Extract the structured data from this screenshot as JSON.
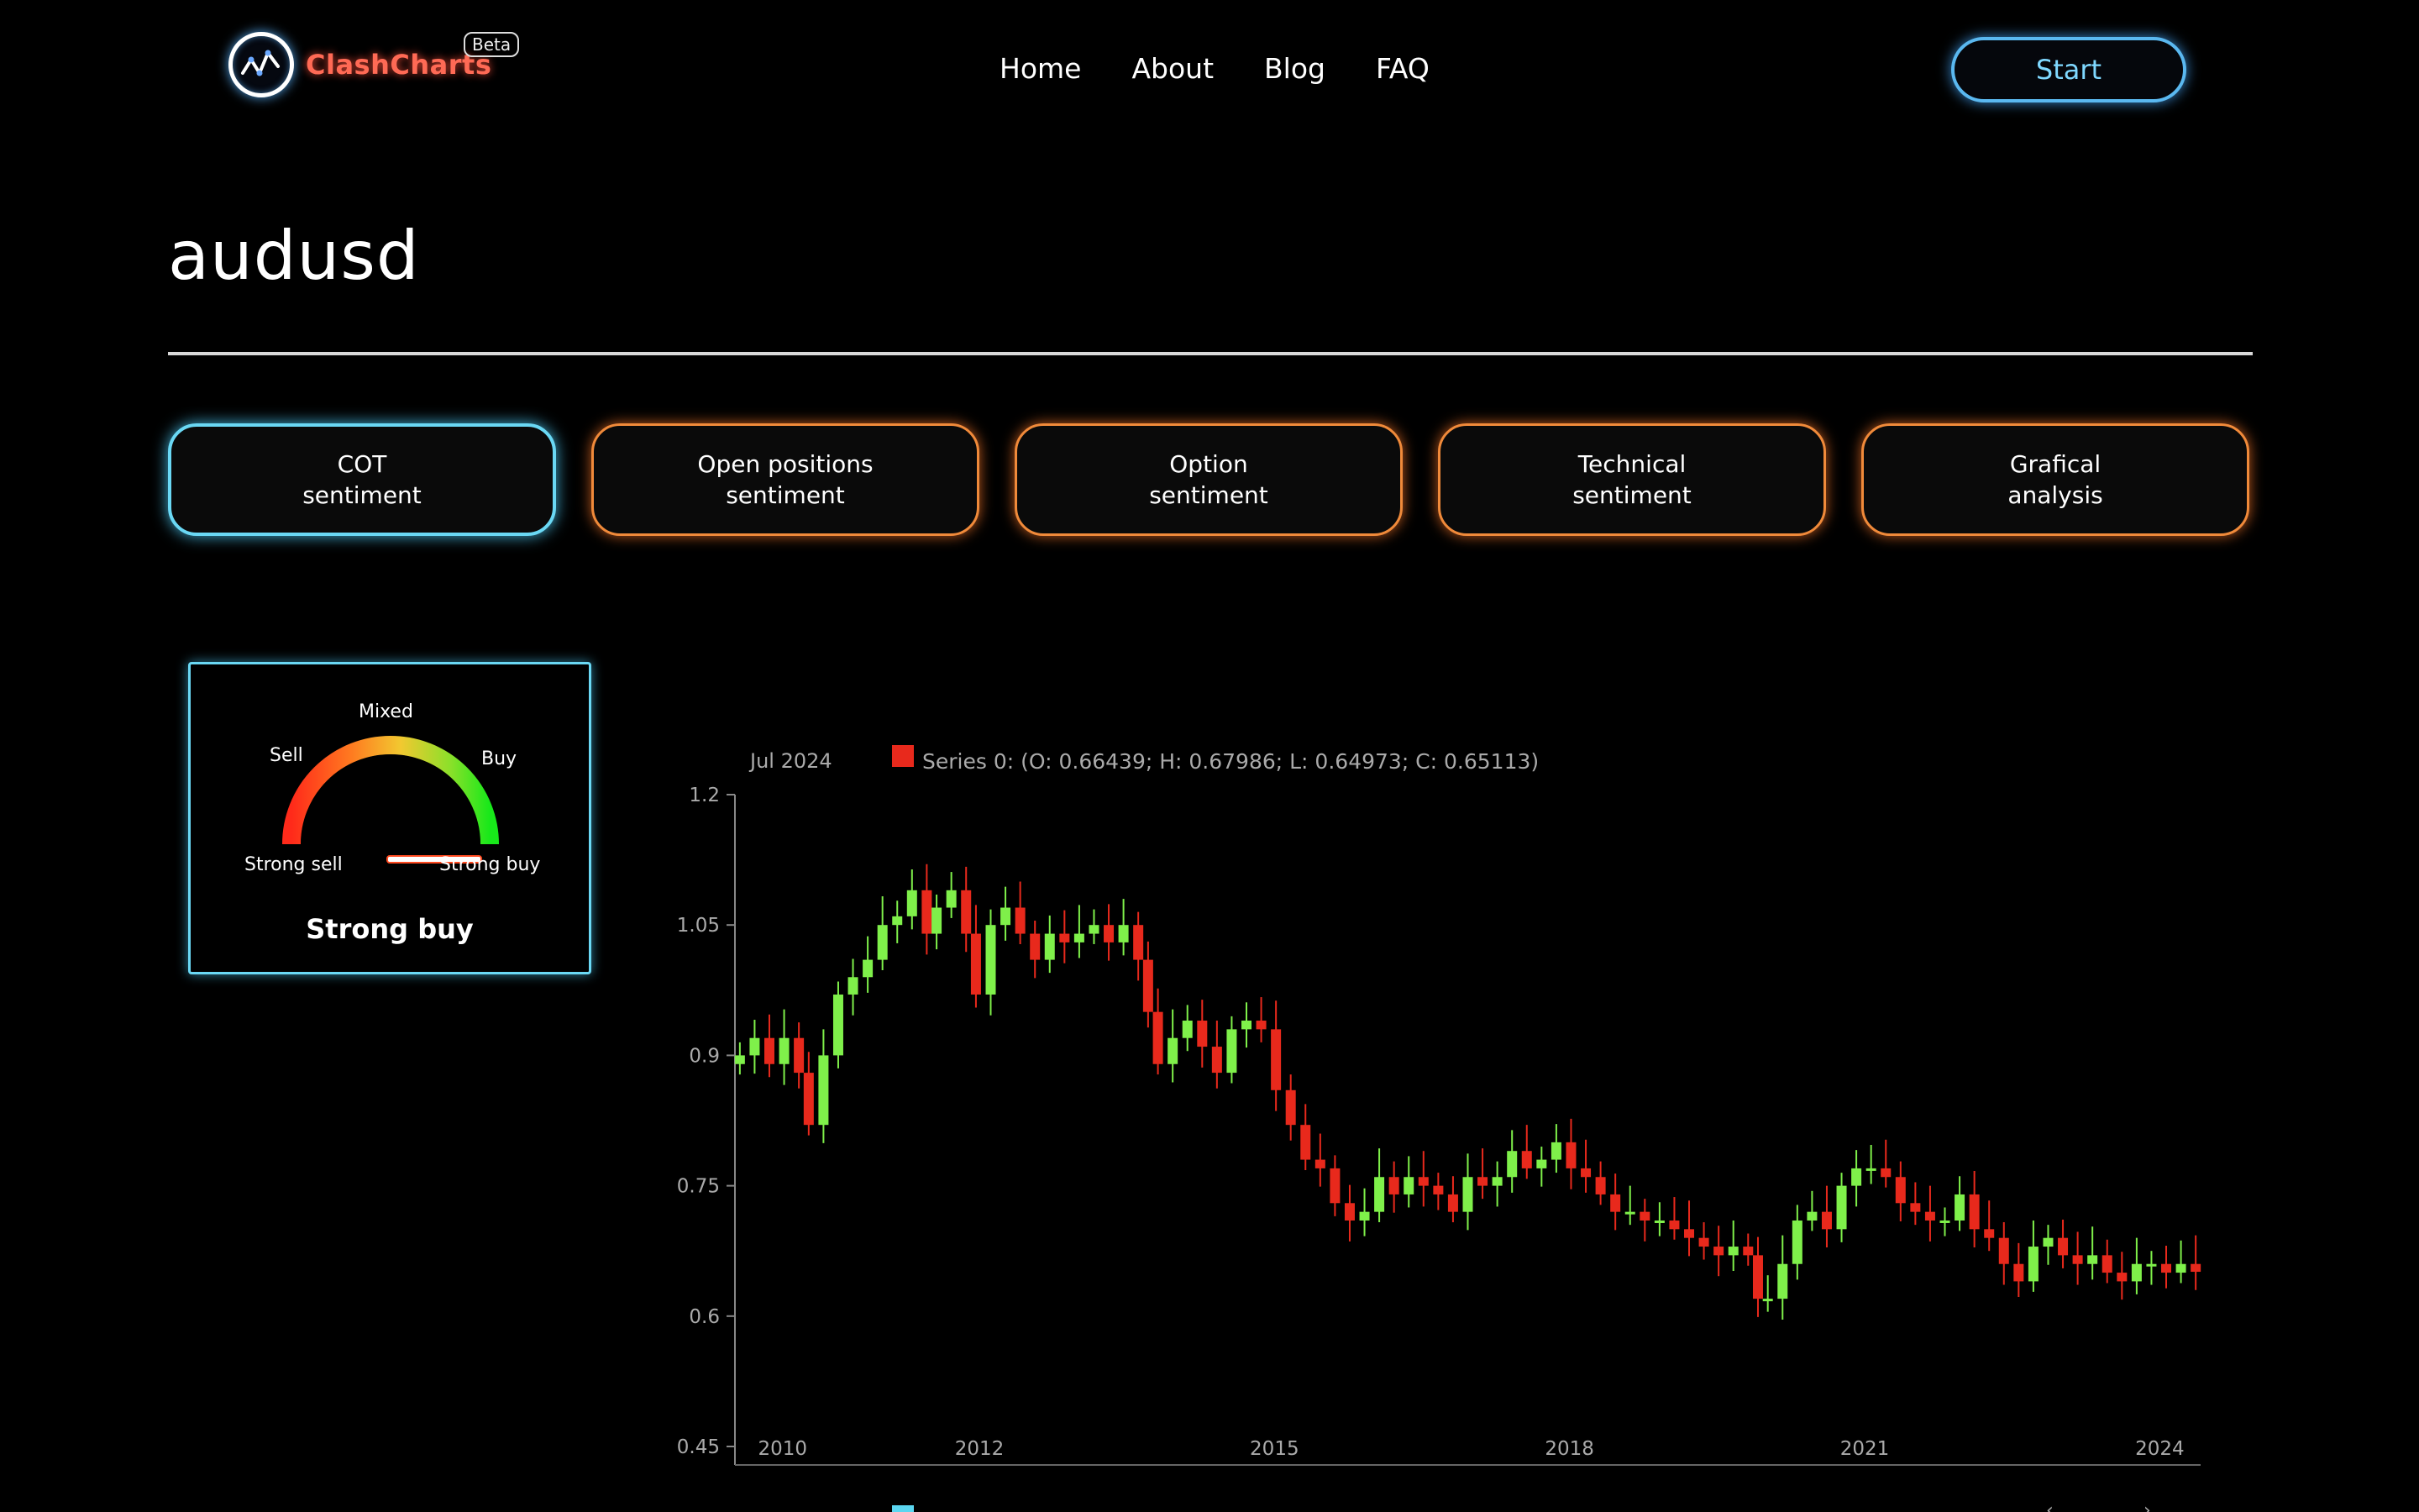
{
  "header": {
    "logo_text": "ClashCharts",
    "badge": "Beta",
    "nav": [
      "Home",
      "About",
      "Blog",
      "FAQ"
    ],
    "start_label": "Start",
    "logo_icon": "wave-chart-icon"
  },
  "page": {
    "title": "audusd"
  },
  "tabs": [
    {
      "line1": "COT",
      "line2": "sentiment",
      "active": true
    },
    {
      "line1": "Open positions",
      "line2": "sentiment",
      "active": false
    },
    {
      "line1": "Option",
      "line2": "sentiment",
      "active": false
    },
    {
      "line1": "Technical",
      "line2": "sentiment",
      "active": false
    },
    {
      "line1": "Grafical",
      "line2": "analysis",
      "active": false
    }
  ],
  "gauge": {
    "labels": {
      "mixed": "Mixed",
      "sell": "Sell",
      "buy": "Buy",
      "strong_sell": "Strong sell",
      "strong_buy": "Strong buy"
    },
    "result": "Strong buy",
    "level": 1.0,
    "colors": {
      "red": "#ff2a1a",
      "yellow": "#f2c830",
      "green": "#18e81a"
    }
  },
  "chart_data": {
    "type": "candlestick",
    "legend": {
      "date": "Jul 2024",
      "series": "Series 0: (O: 0.66439; H: 0.67986; L: 0.64973; C: 0.65113)"
    },
    "y_ticks": [
      "1.2",
      "1.05",
      "0.9",
      "0.75",
      "0.6",
      "0.45"
    ],
    "x_ticks": [
      "2010",
      "2012",
      "2015",
      "2018",
      "2021",
      "2024"
    ],
    "ylim": [
      0.45,
      1.2
    ],
    "xlim": [
      2009.7,
      2024.6
    ],
    "colors": {
      "up": "#7ff04a",
      "down": "#e8291c"
    },
    "closes": [
      [
        2009.75,
        0.9
      ],
      [
        2009.9,
        0.92
      ],
      [
        2010.05,
        0.89
      ],
      [
        2010.2,
        0.92
      ],
      [
        2010.35,
        0.88
      ],
      [
        2010.45,
        0.82
      ],
      [
        2010.6,
        0.9
      ],
      [
        2010.75,
        0.97
      ],
      [
        2010.9,
        0.99
      ],
      [
        2011.05,
        1.01
      ],
      [
        2011.2,
        1.05
      ],
      [
        2011.35,
        1.06
      ],
      [
        2011.5,
        1.09
      ],
      [
        2011.65,
        1.04
      ],
      [
        2011.75,
        1.07
      ],
      [
        2011.9,
        1.09
      ],
      [
        2012.05,
        1.04
      ],
      [
        2012.15,
        0.97
      ],
      [
        2012.3,
        1.05
      ],
      [
        2012.45,
        1.07
      ],
      [
        2012.6,
        1.04
      ],
      [
        2012.75,
        1.01
      ],
      [
        2012.9,
        1.04
      ],
      [
        2013.05,
        1.03
      ],
      [
        2013.2,
        1.04
      ],
      [
        2013.35,
        1.05
      ],
      [
        2013.5,
        1.03
      ],
      [
        2013.65,
        1.05
      ],
      [
        2013.8,
        1.01
      ],
      [
        2013.9,
        0.95
      ],
      [
        2014.0,
        0.89
      ],
      [
        2014.15,
        0.92
      ],
      [
        2014.3,
        0.94
      ],
      [
        2014.45,
        0.91
      ],
      [
        2014.6,
        0.88
      ],
      [
        2014.75,
        0.93
      ],
      [
        2014.9,
        0.94
      ],
      [
        2015.05,
        0.93
      ],
      [
        2015.2,
        0.86
      ],
      [
        2015.35,
        0.82
      ],
      [
        2015.5,
        0.78
      ],
      [
        2015.65,
        0.77
      ],
      [
        2015.8,
        0.73
      ],
      [
        2015.95,
        0.71
      ],
      [
        2016.1,
        0.72
      ],
      [
        2016.25,
        0.76
      ],
      [
        2016.4,
        0.74
      ],
      [
        2016.55,
        0.76
      ],
      [
        2016.7,
        0.75
      ],
      [
        2016.85,
        0.74
      ],
      [
        2017.0,
        0.72
      ],
      [
        2017.15,
        0.76
      ],
      [
        2017.3,
        0.75
      ],
      [
        2017.45,
        0.76
      ],
      [
        2017.6,
        0.79
      ],
      [
        2017.75,
        0.77
      ],
      [
        2017.9,
        0.78
      ],
      [
        2018.05,
        0.8
      ],
      [
        2018.2,
        0.77
      ],
      [
        2018.35,
        0.76
      ],
      [
        2018.5,
        0.74
      ],
      [
        2018.65,
        0.72
      ],
      [
        2018.8,
        0.72
      ],
      [
        2018.95,
        0.71
      ],
      [
        2019.1,
        0.71
      ],
      [
        2019.25,
        0.7
      ],
      [
        2019.4,
        0.69
      ],
      [
        2019.55,
        0.68
      ],
      [
        2019.7,
        0.67
      ],
      [
        2019.85,
        0.68
      ],
      [
        2020.0,
        0.67
      ],
      [
        2020.1,
        0.62
      ],
      [
        2020.2,
        0.62
      ],
      [
        2020.35,
        0.66
      ],
      [
        2020.5,
        0.71
      ],
      [
        2020.65,
        0.72
      ],
      [
        2020.8,
        0.7
      ],
      [
        2020.95,
        0.75
      ],
      [
        2021.1,
        0.77
      ],
      [
        2021.25,
        0.77
      ],
      [
        2021.4,
        0.76
      ],
      [
        2021.55,
        0.73
      ],
      [
        2021.7,
        0.72
      ],
      [
        2021.85,
        0.71
      ],
      [
        2022.0,
        0.71
      ],
      [
        2022.15,
        0.74
      ],
      [
        2022.3,
        0.7
      ],
      [
        2022.45,
        0.69
      ],
      [
        2022.6,
        0.66
      ],
      [
        2022.75,
        0.64
      ],
      [
        2022.9,
        0.68
      ],
      [
        2023.05,
        0.69
      ],
      [
        2023.2,
        0.67
      ],
      [
        2023.35,
        0.66
      ],
      [
        2023.5,
        0.67
      ],
      [
        2023.65,
        0.65
      ],
      [
        2023.8,
        0.64
      ],
      [
        2023.95,
        0.66
      ],
      [
        2024.1,
        0.66
      ],
      [
        2024.25,
        0.65
      ],
      [
        2024.4,
        0.66
      ],
      [
        2024.55,
        0.651
      ]
    ]
  }
}
